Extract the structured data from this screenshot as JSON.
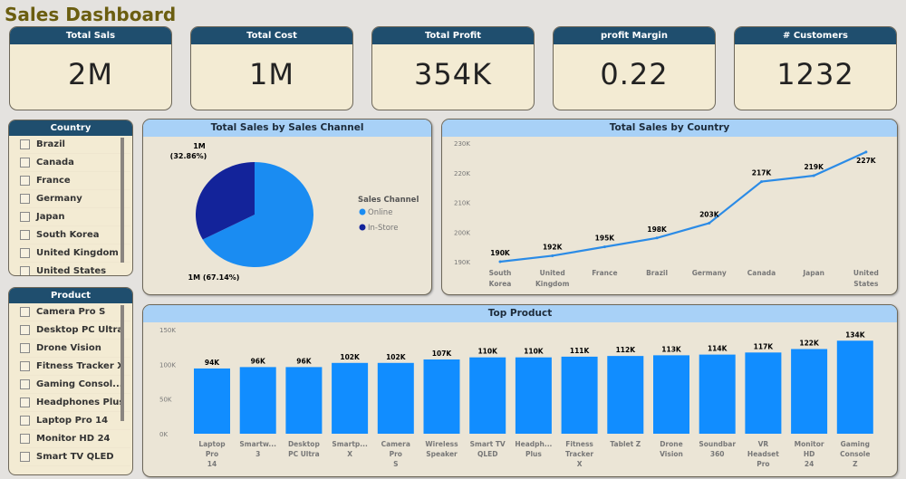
{
  "title": "Sales Dashboard",
  "kpis": [
    {
      "label": "Total Sals",
      "value": "2M"
    },
    {
      "label": "Total Cost",
      "value": "1M"
    },
    {
      "label": "Total Profit",
      "value": "354K"
    },
    {
      "label": "profit Margin",
      "value": "0.22"
    },
    {
      "label": "# Customers",
      "value": "1232"
    }
  ],
  "country_slicer": {
    "title": "Country",
    "items": [
      "Brazil",
      "Canada",
      "France",
      "Germany",
      "Japan",
      "South Korea",
      "United Kingdom",
      "United States"
    ]
  },
  "product_slicer": {
    "title": "Product",
    "items": [
      "Camera Pro S",
      "Desktop PC Ultra",
      "Drone Vision",
      "Fitness Tracker X",
      "Gaming Consol...",
      "Headphones Plus",
      "Laptop Pro 14",
      "Monitor HD 24",
      "Smart TV QLED"
    ]
  },
  "colors": {
    "online": "#1a8cf2",
    "in_store": "#13239a",
    "line": "#2b8be6",
    "bar": "#118dff",
    "header_dark": "#1f4e6e",
    "header_light": "#a8d1f7"
  },
  "chart_data": [
    {
      "type": "pie",
      "title": "Total Sales by Sales Channel",
      "legend_title": "Sales Channel",
      "legend_position": "right",
      "slices": [
        {
          "name": "Online",
          "percent": 67.14,
          "label": "1M (67.14%)"
        },
        {
          "name": "In-Store",
          "percent": 32.86,
          "label": "1M (32.86%)"
        }
      ]
    },
    {
      "type": "line",
      "title": "Total Sales by Country",
      "categories": [
        "South Korea",
        "United Kingdom",
        "France",
        "Brazil",
        "Germany",
        "Canada",
        "Japan",
        "United States"
      ],
      "values": [
        190000,
        192000,
        195000,
        198000,
        203000,
        217000,
        219000,
        227000
      ],
      "data_labels": [
        "190K",
        "192K",
        "195K",
        "198K",
        "203K",
        "217K",
        "219K",
        "227K"
      ],
      "ylim": [
        190000,
        230000
      ],
      "yticks": [
        "190K",
        "200K",
        "210K",
        "220K",
        "230K"
      ],
      "grid": false
    },
    {
      "type": "bar",
      "title": "Top Product",
      "categories": [
        "Laptop Pro 14",
        "Smartw... 3",
        "Desktop PC Ultra",
        "Smartp... X",
        "Camera Pro S",
        "Wireless Speaker",
        "Smart TV QLED",
        "Headph... Plus",
        "Fitness Tracker X",
        "Tablet Z",
        "Drone Vision",
        "Soundbar 360",
        "VR Headset Pro",
        "Monitor HD 24",
        "Gaming Console Z"
      ],
      "values": [
        94000,
        96000,
        96000,
        102000,
        102000,
        107000,
        110000,
        110000,
        111000,
        112000,
        113000,
        114000,
        117000,
        122000,
        134000
      ],
      "data_labels": [
        "94K",
        "96K",
        "96K",
        "102K",
        "102K",
        "107K",
        "110K",
        "110K",
        "111K",
        "112K",
        "113K",
        "114K",
        "117K",
        "122K",
        "134K"
      ],
      "ylim": [
        0,
        150000
      ],
      "yticks": [
        "0K",
        "50K",
        "100K",
        "150K"
      ],
      "grid": false
    }
  ]
}
